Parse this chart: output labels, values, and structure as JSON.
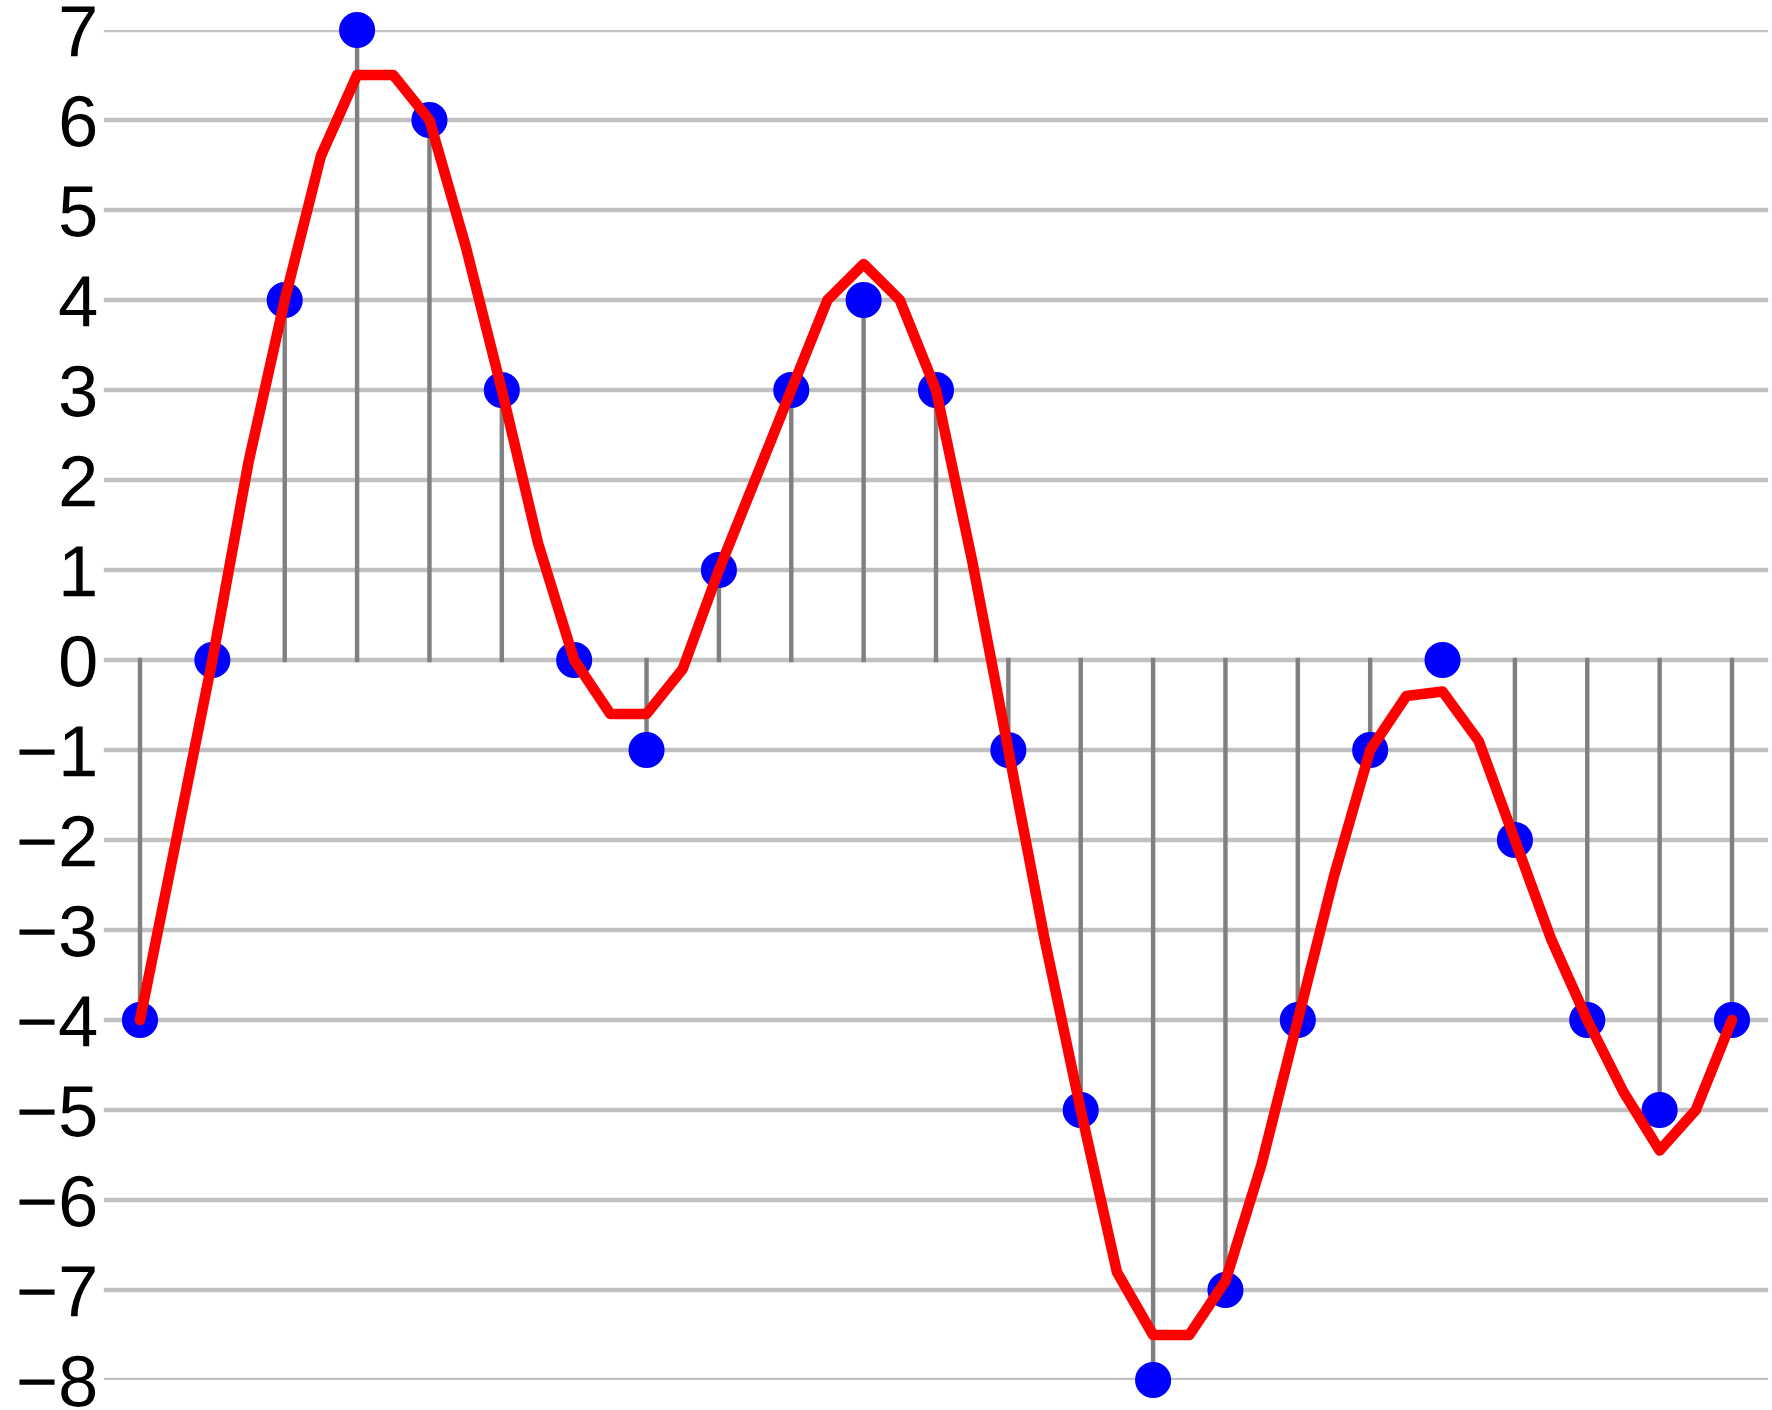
{
  "chart_data": [
    {
      "type": "lollipop",
      "categories": [
        null,
        null,
        null,
        null,
        null,
        null,
        null,
        null,
        null,
        null,
        null,
        null,
        null,
        null,
        null,
        null,
        null,
        null,
        null,
        null,
        null,
        null,
        null
      ],
      "series": [
        {
          "color": "#0000ff",
          "values": [
            -4,
            0,
            4,
            7,
            6,
            3,
            0,
            -1,
            1,
            3,
            4,
            3,
            -1,
            -5,
            -8,
            -7,
            -4,
            -1,
            0,
            -2,
            -4,
            -5,
            -4
          ]
        }
      ],
      "ylim": [
        -8,
        7
      ],
      "yticks": [
        {
          "value": -8,
          "label": "−8"
        },
        {
          "value": -7,
          "label": "−7"
        },
        {
          "value": -6,
          "label": "−6"
        },
        {
          "value": -5,
          "label": "−5"
        },
        {
          "value": -4,
          "label": "−4"
        },
        {
          "value": -3,
          "label": "−3"
        },
        {
          "value": -2,
          "label": "−2"
        },
        {
          "value": -1,
          "label": "−1"
        },
        0,
        1,
        2,
        3,
        4,
        5,
        6,
        7
      ],
      "tick_labels": "y",
      "grid": "y",
      "marker": "circle"
    },
    {
      "type": "line",
      "categories": [
        null,
        null,
        null,
        null,
        null,
        null,
        null,
        null,
        null,
        null,
        null,
        null,
        null,
        null,
        null,
        null,
        null,
        null,
        null,
        null,
        null,
        null,
        null,
        null,
        null,
        null,
        null,
        null,
        null,
        null,
        null,
        null,
        null,
        null,
        null,
        null,
        null,
        null,
        null,
        null,
        null,
        null,
        null,
        null,
        null
      ],
      "series": [
        {
          "color": "#ff0000",
          "values": [
            -4,
            -2,
            0,
            2.2,
            4,
            5.6,
            6.5,
            6.5,
            6,
            4.6,
            3,
            1.3,
            0,
            -0.6,
            -0.6,
            -0.1,
            1,
            2,
            3,
            4,
            4.4,
            4,
            3,
            1.1,
            -1,
            -3.1,
            -5,
            -6.8,
            -7.5,
            -7.5,
            -6.9,
            -5.6,
            -4,
            -2.4,
            -1,
            -0.4,
            -0.35,
            -0.9,
            -2,
            -3.1,
            -4,
            -4.8,
            -5.45,
            -5,
            -4
          ]
        }
      ],
      "ylim": [
        -8,
        7
      ],
      "tick_labels": false,
      "line_style": "solid"
    }
  ]
}
